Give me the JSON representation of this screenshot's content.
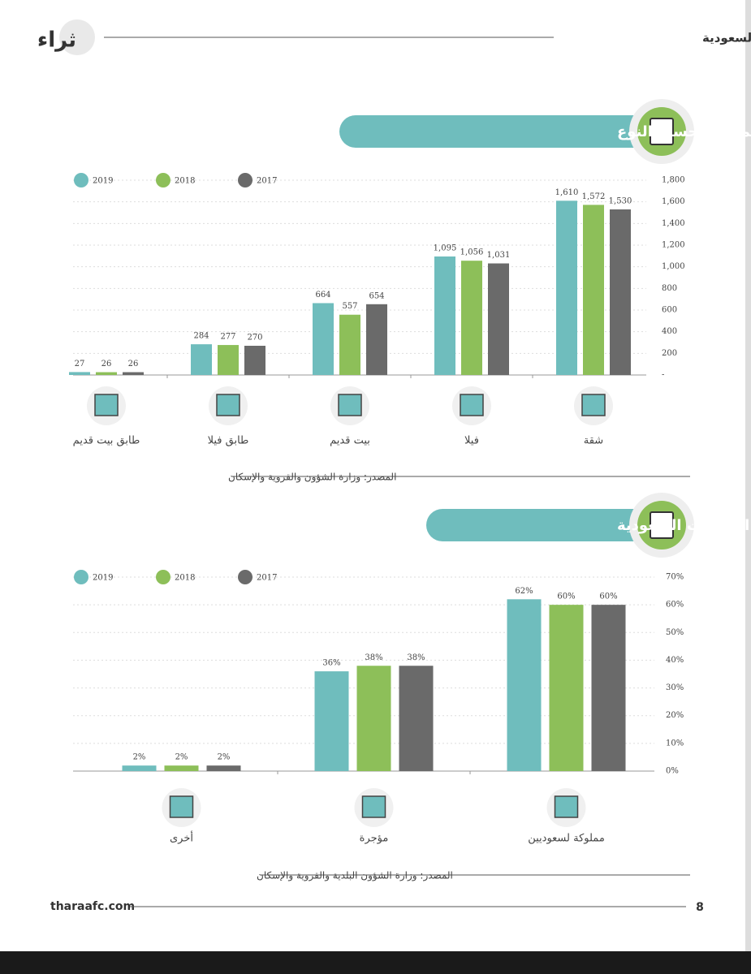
{
  "header": {
    "logo": "ثراء",
    "title": "البورصة العقارية السعودية"
  },
  "chart_data": [
    {
      "type": "bar",
      "title": "العقارات المملوكة /المؤجرة حسب النوع",
      "categories": [
        "شقة",
        "فيلا",
        "بيت قديم",
        "طابق فيلا",
        "طابق بيت قديم"
      ],
      "series": [
        {
          "name": "2019",
          "color": "#6fbdbd",
          "values": [
            1610,
            1095,
            664,
            284,
            27
          ],
          "value_labels": [
            "1,610",
            "1,095",
            "664",
            "284",
            "27"
          ]
        },
        {
          "name": "2018",
          "color": "#8dbf59",
          "values": [
            1572,
            1056,
            557,
            277,
            26
          ],
          "value_labels": [
            "1,572",
            "1,056",
            "557",
            "277",
            "26"
          ]
        },
        {
          "name": "2017",
          "color": "#6a6a6a",
          "values": [
            1530,
            1031,
            654,
            270,
            26
          ],
          "value_labels": [
            "1,530",
            "1,031",
            "654",
            "270",
            "26"
          ]
        }
      ],
      "ylim": [
        0,
        1800
      ],
      "yticks": [
        {
          "value": 0,
          "label": "-"
        },
        200,
        400,
        600,
        800,
        {
          "value": 1000,
          "label": "1,000"
        },
        {
          "value": 1200,
          "label": "1,200"
        },
        {
          "value": 1400,
          "label": "1,400"
        },
        {
          "value": 1600,
          "label": "1,600"
        },
        {
          "value": 1800,
          "label": "1,800"
        }
      ],
      "grid": true,
      "legend": "top-left",
      "source": "المصدر: وزارة الشؤون والقروية والإسكان"
    },
    {
      "type": "bar",
      "title": "ملكية العقارات السعودية",
      "categories": [
        "مملوكة لسعوديين",
        "مؤجرة",
        "أخرى"
      ],
      "series": [
        {
          "name": "2019",
          "color": "#6fbdbd",
          "values": [
            62,
            36,
            2
          ],
          "value_labels": [
            "62%",
            "36%",
            "2%"
          ]
        },
        {
          "name": "2018",
          "color": "#8dbf59",
          "values": [
            60,
            38,
            2
          ],
          "value_labels": [
            "60%",
            "38%",
            "2%"
          ]
        },
        {
          "name": "2017",
          "color": "#6a6a6a",
          "values": [
            60,
            38,
            2
          ],
          "value_labels": [
            "60%",
            "38%",
            "2%"
          ]
        }
      ],
      "ylim": [
        0,
        70
      ],
      "yticks": [
        {
          "value": 0,
          "label": "0%"
        },
        {
          "value": 10,
          "label": "10%"
        },
        {
          "value": 20,
          "label": "20%"
        },
        {
          "value": 30,
          "label": "30%"
        },
        {
          "value": 40,
          "label": "40%"
        },
        {
          "value": 50,
          "label": "50%"
        },
        {
          "value": 60,
          "label": "60%"
        },
        {
          "value": 70,
          "label": "70%"
        }
      ],
      "grid": true,
      "legend": "top-left",
      "source": "المصدر: وزارة الشؤون البلدية والقروية والإسكان"
    }
  ],
  "footer": {
    "site": "tharaafc.com",
    "page": "8"
  }
}
